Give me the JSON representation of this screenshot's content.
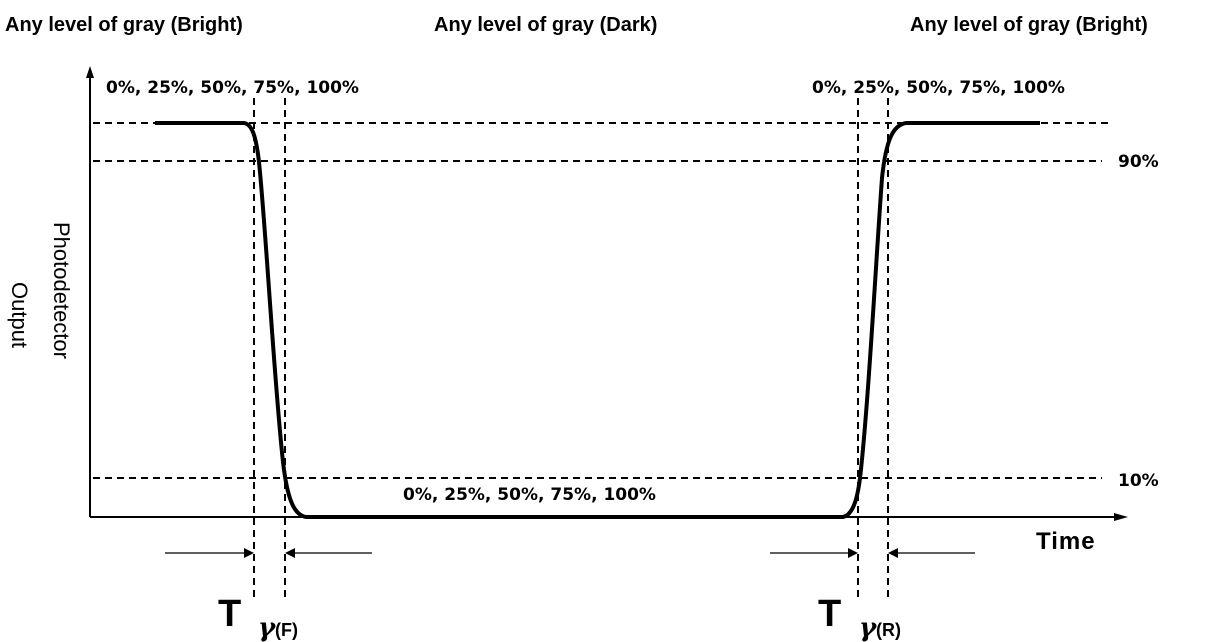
{
  "headers": {
    "left": "Any level of gray (Bright)",
    "center": "Any level of gray (Dark)",
    "right": "Any level of gray (Bright)"
  },
  "levels": {
    "top_left": "0%, 25%, 50%, 75%, 100%",
    "top_right": "0%, 25%, 50%, 75%, 100%",
    "bottom_center": "0%, 25%, 50%, 75%, 100%"
  },
  "thresholds": {
    "high": "90%",
    "low": "10%"
  },
  "axes": {
    "y_line1": "Photodetector",
    "y_line2": "Output",
    "x": "Time"
  },
  "timing": {
    "fall_T": "T",
    "fall_sub": "γ",
    "fall_paren": "(F)",
    "rise_T": "T",
    "rise_sub": "γ",
    "rise_paren": "(R)"
  }
}
